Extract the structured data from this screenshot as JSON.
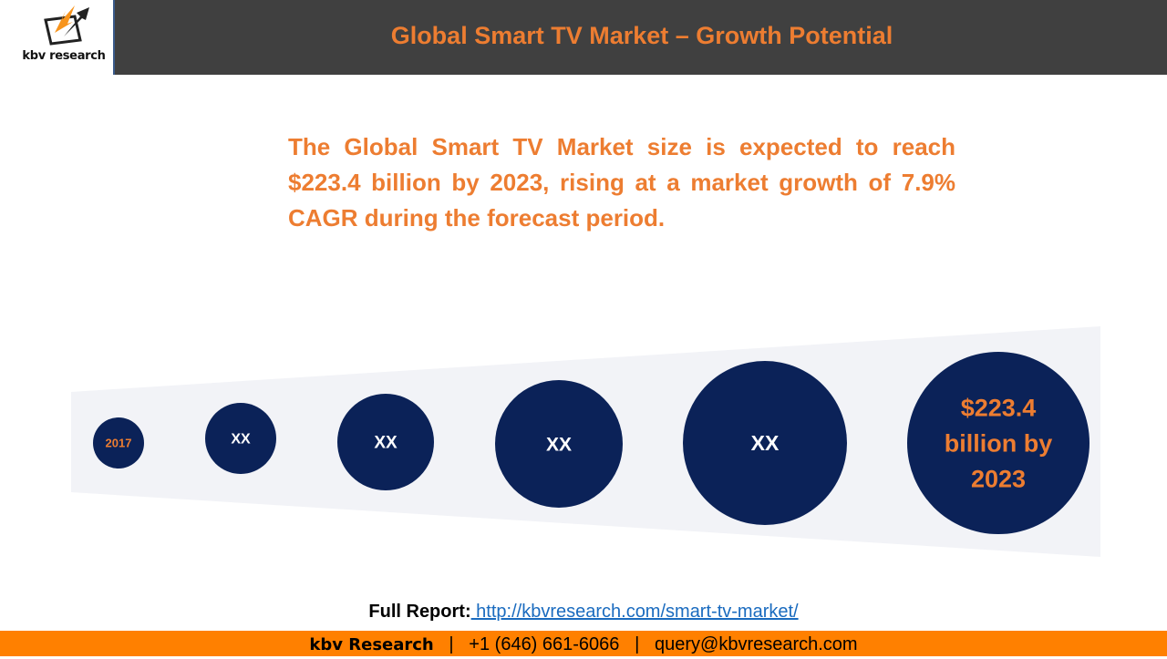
{
  "logo": {
    "text": "kbv research"
  },
  "header": {
    "title": "Global Smart TV Market – Growth Potential"
  },
  "lead": "The Global Smart TV Market size is expected to reach $223.4 billion by 2023, rising at a market growth of 7.9% CAGR during the forecast period.",
  "circles": [
    {
      "lines": [
        "2017"
      ],
      "color": "#ED7D31"
    },
    {
      "lines": [
        "XX"
      ],
      "color": "#FFFFFF"
    },
    {
      "lines": [
        "XX"
      ],
      "color": "#FFFFFF"
    },
    {
      "lines": [
        "XX"
      ],
      "color": "#FFFFFF"
    },
    {
      "lines": [
        "XX"
      ],
      "color": "#FFFFFF"
    },
    {
      "lines": [
        "$223.4",
        "billion by",
        "2023"
      ],
      "color": "#ED7D31"
    }
  ],
  "colors": {
    "header": "#404040",
    "accent": "#ED7D31",
    "circle": "#0B2258",
    "band": "#F2F3F7",
    "footer": "#FF8000"
  },
  "full_report": {
    "label": "Full Report:",
    "link": " http://kbvresearch.com/smart-tv-market/"
  },
  "footer": {
    "brand": "kbv Research",
    "sep": "|",
    "phone": "+1 (646) 661-6066",
    "email": "query@kbvresearch.com"
  }
}
